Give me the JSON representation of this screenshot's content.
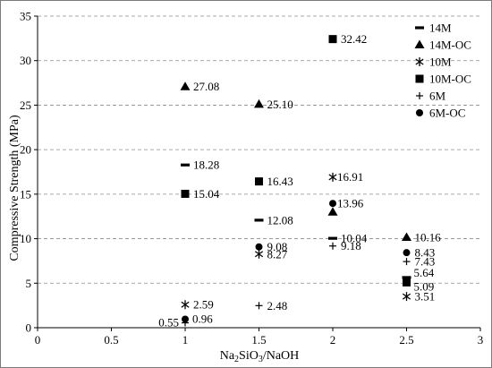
{
  "chart_data": {
    "type": "scatter",
    "xlabel_main": "Na",
    "xlabel_sub1": "2",
    "xlabel_mid": "SiO",
    "xlabel_sub2": "3",
    "xlabel_tail": "/NaOH",
    "ylabel": "Compressive Strength (MPa)",
    "xlim": [
      0,
      3
    ],
    "ylim": [
      0,
      35
    ],
    "xticks": [
      "0",
      "0.5",
      "1",
      "1.5",
      "2",
      "2.5",
      "3"
    ],
    "yticks": [
      "0",
      "5",
      "10",
      "15",
      "20",
      "25",
      "30",
      "35"
    ],
    "grid": "horizontal dashed",
    "legend_position": "top-right",
    "series": [
      {
        "name": "14M",
        "marker": "dash",
        "points": [
          [
            1,
            18.28
          ],
          [
            1.5,
            12.08
          ],
          [
            2,
            10.04
          ],
          [
            2.5,
            5.64
          ]
        ]
      },
      {
        "name": "14M-OC",
        "marker": "triangle",
        "points": [
          [
            1,
            27.08
          ],
          [
            1.5,
            25.1
          ],
          [
            2,
            13.0
          ],
          [
            2.5,
            10.16
          ]
        ]
      },
      {
        "name": "10M",
        "marker": "asterisk",
        "points": [
          [
            1,
            2.59
          ],
          [
            1.5,
            8.27
          ],
          [
            2,
            16.91
          ],
          [
            2.5,
            3.51
          ]
        ]
      },
      {
        "name": "10M-OC",
        "marker": "square",
        "points": [
          [
            1,
            15.04
          ],
          [
            1.5,
            16.43
          ],
          [
            2,
            32.42
          ],
          [
            2.5,
            5.09
          ]
        ]
      },
      {
        "name": "6M",
        "marker": "plus",
        "points": [
          [
            1,
            0.55
          ],
          [
            1.5,
            2.48
          ],
          [
            2,
            9.18
          ],
          [
            2.5,
            7.43
          ]
        ]
      },
      {
        "name": "6M-OC",
        "marker": "circle",
        "points": [
          [
            1,
            0.96
          ],
          [
            1.5,
            9.08
          ],
          [
            2,
            13.96
          ],
          [
            2.5,
            8.43
          ]
        ]
      }
    ],
    "data_labels": [
      {
        "text": "18.28",
        "x": 1,
        "y": 18.28,
        "series": "14M"
      },
      {
        "text": "12.08",
        "x": 1.5,
        "y": 12.08,
        "series": "14M"
      },
      {
        "text": "10.04",
        "x": 2,
        "y": 10.04,
        "series": "14M"
      },
      {
        "text": "5.64",
        "x": 2.5,
        "y": 5.64,
        "series": "14M"
      },
      {
        "text": "27.08",
        "x": 1,
        "y": 27.08,
        "series": "14M-OC"
      },
      {
        "text": "25.10",
        "x": 1.5,
        "y": 25.1,
        "series": "14M-OC"
      },
      {
        "text": "10.16",
        "x": 2.5,
        "y": 10.16,
        "series": "14M-OC"
      },
      {
        "text": "2.59",
        "x": 1,
        "y": 2.59,
        "series": "10M"
      },
      {
        "text": "8.27",
        "x": 1.5,
        "y": 8.27,
        "series": "10M"
      },
      {
        "text": "16.91",
        "x": 2,
        "y": 16.91,
        "series": "10M"
      },
      {
        "text": "3.51",
        "x": 2.5,
        "y": 3.51,
        "series": "10M"
      },
      {
        "text": "15.04",
        "x": 1,
        "y": 15.04,
        "series": "10M-OC"
      },
      {
        "text": "16.43",
        "x": 1.5,
        "y": 16.43,
        "series": "10M-OC"
      },
      {
        "text": "32.42",
        "x": 2,
        "y": 32.42,
        "series": "10M-OC"
      },
      {
        "text": "5.09",
        "x": 2.5,
        "y": 5.09,
        "series": "10M-OC"
      },
      {
        "text": "0.55",
        "x": 1,
        "y": 0.55,
        "series": "6M"
      },
      {
        "text": "2.48",
        "x": 1.5,
        "y": 2.48,
        "series": "6M"
      },
      {
        "text": "9.18",
        "x": 2,
        "y": 9.18,
        "series": "6M"
      },
      {
        "text": "7.43",
        "x": 2.5,
        "y": 7.43,
        "series": "6M"
      },
      {
        "text": "0.96",
        "x": 1,
        "y": 0.96,
        "series": "6M-OC"
      },
      {
        "text": "9.08",
        "x": 1.5,
        "y": 9.08,
        "series": "6M-OC"
      },
      {
        "text": "13.96",
        "x": 2,
        "y": 13.96,
        "series": "6M-OC"
      },
      {
        "text": "8.43",
        "x": 2.5,
        "y": 8.43,
        "series": "6M-OC"
      }
    ],
    "marker_color": "#000000",
    "grid_color": "#8c8c8c"
  }
}
